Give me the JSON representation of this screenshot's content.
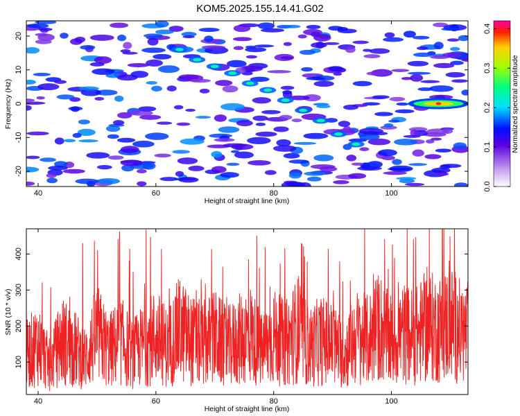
{
  "title": "KOM5.2025.155.14.41.G02",
  "chart_data": [
    {
      "type": "heatmap",
      "xlabel": "Height of straight line (km)",
      "ylabel": "Frequency (Hz)",
      "xlim": [
        38,
        113
      ],
      "ylim": [
        -24.5,
        24.5
      ],
      "xticks": [
        40,
        60,
        80,
        100
      ],
      "yticks": [
        -20,
        -10,
        0,
        10,
        20
      ],
      "colorbar": {
        "label": "Normalized spectral amplitude",
        "range": [
          0.0,
          0.42
        ],
        "ticks": [
          "0.0",
          "0.1",
          "0.2",
          "0.3",
          "0.4"
        ]
      },
      "ridge": [
        {
          "x": 64,
          "y": 16
        },
        {
          "x": 67,
          "y": 13
        },
        {
          "x": 70,
          "y": 11
        },
        {
          "x": 73,
          "y": 9
        },
        {
          "x": 76,
          "y": 6
        },
        {
          "x": 79,
          "y": 4
        },
        {
          "x": 82,
          "y": 1
        },
        {
          "x": 85,
          "y": -2
        },
        {
          "x": 88,
          "y": -5
        },
        {
          "x": 91,
          "y": -9
        },
        {
          "x": 94,
          "y": -12
        }
      ],
      "peak": {
        "x": 108,
        "y": 0,
        "value": 0.42
      }
    },
    {
      "type": "line",
      "xlabel": "Height of straight line (km)",
      "ylabel": "SNR (10 * v/v)",
      "xlim": [
        38,
        113
      ],
      "ylim": [
        10,
        470
      ],
      "xticks": [
        40,
        60,
        80,
        100
      ],
      "yticks": [
        100,
        200,
        300,
        400
      ],
      "color": "#ee2222",
      "x": [
        38,
        40,
        42,
        44,
        46,
        48,
        50,
        52,
        54,
        56,
        58,
        60,
        62,
        64,
        66,
        68,
        70,
        72,
        74,
        76,
        78,
        80,
        82,
        84,
        86,
        88,
        90,
        92,
        94,
        96,
        98,
        100,
        102,
        104,
        106,
        108,
        110,
        112
      ],
      "y": [
        120,
        150,
        90,
        160,
        140,
        110,
        180,
        130,
        160,
        120,
        150,
        170,
        140,
        190,
        160,
        150,
        170,
        140,
        160,
        180,
        130,
        170,
        150,
        190,
        140,
        160,
        150,
        120,
        170,
        160,
        200,
        150,
        180,
        170,
        200,
        190,
        210,
        180
      ]
    }
  ]
}
